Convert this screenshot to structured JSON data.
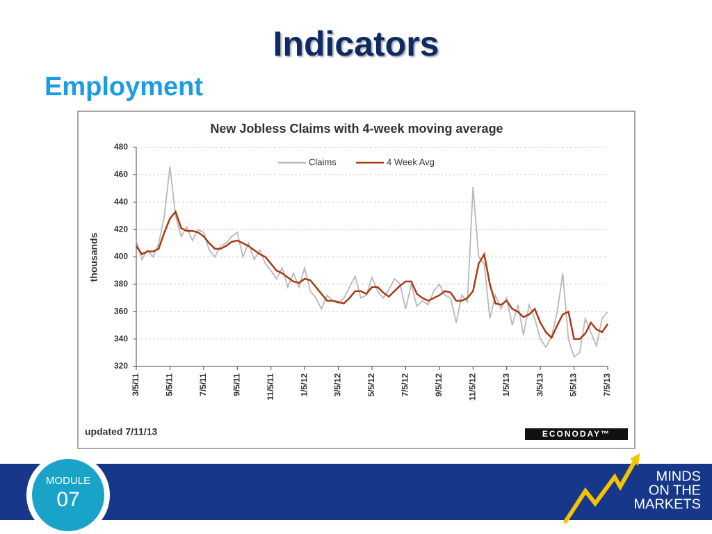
{
  "title": "Indicators",
  "subtitle": "Employment",
  "chart_data": {
    "type": "line",
    "title": "New Jobless Claims with 4-week moving average",
    "ylabel": "thousands",
    "note": "updated 7/11/13",
    "source": "ECONODAY™",
    "categories": [
      "3/5/11",
      null,
      null,
      null,
      null,
      null,
      "5/5/11",
      null,
      null,
      null,
      null,
      null,
      "7/5/11",
      null,
      null,
      null,
      null,
      null,
      "9/5/11",
      null,
      null,
      null,
      null,
      null,
      "11/5/11",
      null,
      null,
      null,
      null,
      null,
      "1/5/12",
      null,
      null,
      null,
      null,
      null,
      "3/5/12",
      null,
      null,
      null,
      null,
      null,
      "5/5/12",
      null,
      null,
      null,
      null,
      null,
      "7/5/12",
      null,
      null,
      null,
      null,
      null,
      "9/5/12",
      null,
      null,
      null,
      null,
      null,
      "11/5/12",
      null,
      null,
      null,
      null,
      null,
      "1/5/13",
      null,
      null,
      null,
      null,
      null,
      "3/5/13",
      null,
      null,
      null,
      null,
      null,
      "5/5/13",
      null,
      null,
      null,
      null,
      null,
      "7/5/13"
    ],
    "series": [
      {
        "name": "Claims",
        "color": "#b8b8b8",
        "values": [
          412,
          398,
          405,
          400,
          410,
          430,
          466,
          430,
          415,
          422,
          412,
          420,
          418,
          405,
          400,
          408,
          410,
          415,
          418,
          400,
          410,
          398,
          405,
          395,
          390,
          384,
          392,
          378,
          388,
          378,
          392,
          375,
          370,
          362,
          372,
          368,
          366,
          370,
          378,
          386,
          370,
          372,
          385,
          375,
          370,
          376,
          384,
          380,
          362,
          380,
          364,
          368,
          365,
          375,
          380,
          372,
          370,
          352,
          372,
          367,
          451,
          400,
          395,
          355,
          372,
          362,
          370,
          350,
          365,
          343,
          365,
          355,
          340,
          334,
          342,
          360,
          388,
          340,
          327,
          330,
          355,
          345,
          335,
          355,
          360
        ]
      },
      {
        "name": "4 Week Avg",
        "color": "#a83a14",
        "values": [
          408,
          402,
          404,
          404,
          406,
          418,
          428,
          433,
          421,
          419,
          419,
          418,
          415,
          410,
          406,
          406,
          408,
          411,
          412,
          410,
          408,
          405,
          402,
          400,
          395,
          390,
          388,
          385,
          382,
          381,
          384,
          383,
          378,
          373,
          368,
          368,
          367,
          366,
          370,
          375,
          375,
          373,
          378,
          378,
          374,
          371,
          375,
          379,
          382,
          382,
          373,
          370,
          368,
          370,
          372,
          375,
          374,
          368,
          368,
          370,
          375,
          395,
          402,
          380,
          366,
          365,
          368,
          362,
          360,
          356,
          358,
          362,
          352,
          345,
          341,
          350,
          358,
          360,
          340,
          340,
          344,
          352,
          347,
          345,
          351
        ]
      }
    ],
    "ylim": [
      320,
      480
    ],
    "yticks": [
      320,
      340,
      360,
      380,
      400,
      420,
      440,
      460,
      480
    ],
    "grid": true
  },
  "footer": {
    "module": "MODULE",
    "number": "07",
    "brand": [
      "MINDS",
      "ON THE",
      "MARKETS"
    ]
  }
}
